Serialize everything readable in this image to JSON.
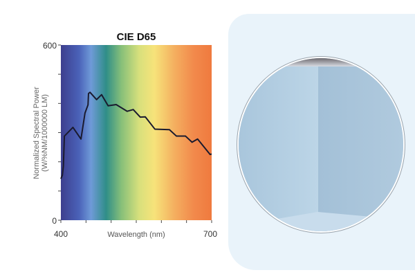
{
  "chart_data": {
    "type": "line",
    "title": "CIE D65",
    "xlabel": "Wavelength (nm)",
    "ylabel": "Normalized Spectral Power",
    "ylabel2": "(W/%NM/1000000 LM)",
    "xlim": [
      400,
      700
    ],
    "ylim": [
      0,
      600
    ],
    "x_tick_labels": [
      "400",
      "700"
    ],
    "y_tick_labels": [
      "0",
      "600"
    ],
    "x_ticks": [
      400,
      450,
      500,
      550,
      600,
      650,
      700
    ],
    "y_ticks": [
      0,
      100,
      200,
      300,
      400,
      500,
      600
    ],
    "background": "visible spectrum gradient",
    "line_color": "#1a1a2e",
    "series": [
      {
        "x": [
          400,
          403,
          405,
          407,
          424,
          440,
          448,
          454,
          455,
          458,
          471,
          481,
          494,
          510,
          532,
          544,
          558,
          568,
          587,
          616,
          630,
          648,
          661,
          672,
          697,
          700
        ],
        "y": [
          142,
          154,
          186,
          288,
          318,
          278,
          367,
          395,
          434,
          438,
          413,
          430,
          392,
          396,
          373,
          379,
          353,
          354,
          312,
          310,
          288,
          288,
          267,
          278,
          225,
          227
        ]
      }
    ]
  },
  "photo": {
    "subject": "room-corner",
    "border_color": "#ffffff"
  }
}
